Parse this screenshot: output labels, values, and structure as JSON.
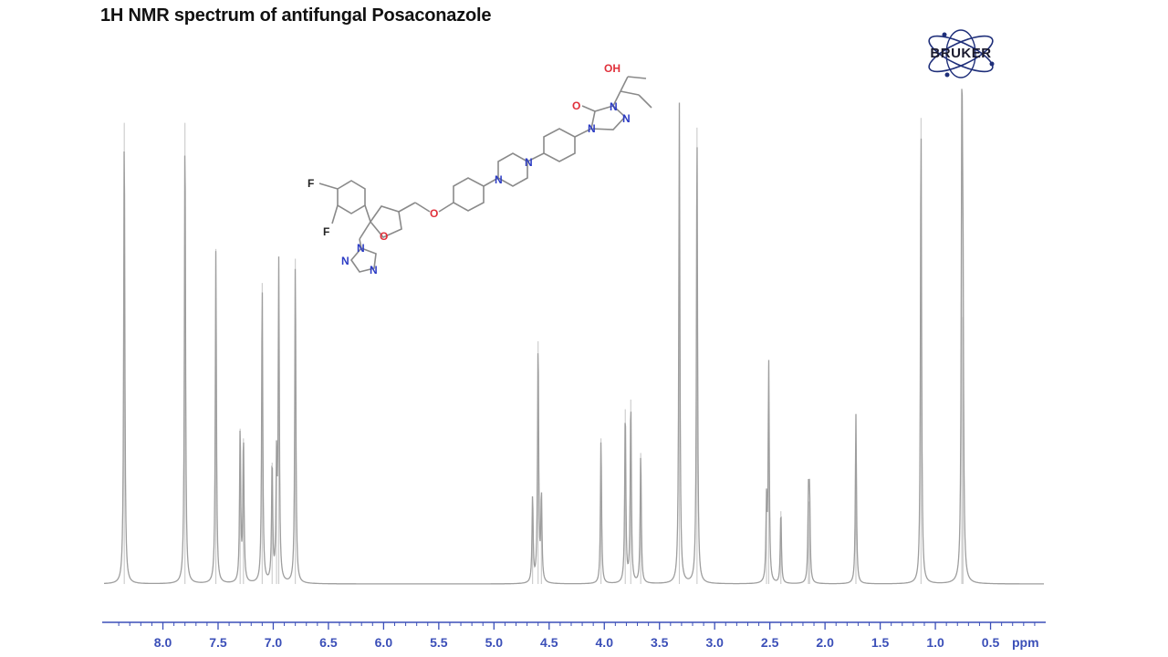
{
  "title": "1H NMR spectrum of antifungal Posaconazole",
  "logo": {
    "text": "BRUKER",
    "icon": "atom-orbit-icon"
  },
  "molecule": {
    "atom_labels": [
      "OH",
      "O",
      "N",
      "N",
      "N",
      "N",
      "N",
      "O",
      "O",
      "F",
      "F",
      "N",
      "N",
      "N"
    ]
  },
  "chart_data": {
    "type": "line",
    "title": "1H NMR spectrum of antifungal Posaconazole",
    "xlabel": "ppm",
    "xlim": [
      8.55,
      0.0
    ],
    "x_reversed": true,
    "ylim": [
      0,
      1.0
    ],
    "grid": false,
    "x_ticks": [
      8.0,
      7.5,
      7.0,
      6.5,
      6.0,
      5.5,
      5.0,
      4.5,
      4.0,
      3.5,
      3.0,
      2.5,
      2.0,
      1.5,
      1.0,
      0.5
    ],
    "x_tick_labels": [
      "8.0",
      "7.5",
      "7.0",
      "6.5",
      "6.0",
      "5.5",
      "5.0",
      "4.5",
      "4.0",
      "3.5",
      "3.0",
      "2.5",
      "2.0",
      "1.5",
      "1.0",
      "0.5"
    ],
    "series": [
      {
        "peaks": [
          {
            "ppm": 8.35,
            "intensity": 0.95
          },
          {
            "ppm": 7.8,
            "intensity": 0.95
          },
          {
            "ppm": 7.52,
            "intensity": 0.69
          },
          {
            "ppm": 7.3,
            "intensity": 0.32
          },
          {
            "ppm": 7.27,
            "intensity": 0.3
          },
          {
            "ppm": 7.1,
            "intensity": 0.62
          },
          {
            "ppm": 7.01,
            "intensity": 0.25
          },
          {
            "ppm": 6.97,
            "intensity": 0.24
          },
          {
            "ppm": 6.95,
            "intensity": 0.65
          },
          {
            "ppm": 6.8,
            "intensity": 0.67
          },
          {
            "ppm": 4.65,
            "intensity": 0.18
          },
          {
            "ppm": 4.6,
            "intensity": 0.5
          },
          {
            "ppm": 4.57,
            "intensity": 0.18
          },
          {
            "ppm": 4.03,
            "intensity": 0.3
          },
          {
            "ppm": 3.81,
            "intensity": 0.36
          },
          {
            "ppm": 3.76,
            "intensity": 0.38
          },
          {
            "ppm": 3.67,
            "intensity": 0.27
          },
          {
            "ppm": 3.32,
            "intensity": 0.99
          },
          {
            "ppm": 3.16,
            "intensity": 0.94
          },
          {
            "ppm": 2.53,
            "intensity": 0.16
          },
          {
            "ppm": 2.51,
            "intensity": 0.45
          },
          {
            "ppm": 2.4,
            "intensity": 0.15
          },
          {
            "ppm": 2.15,
            "intensity": 0.17
          },
          {
            "ppm": 2.14,
            "intensity": 0.17
          },
          {
            "ppm": 1.72,
            "intensity": 0.35
          },
          {
            "ppm": 1.13,
            "intensity": 0.96
          },
          {
            "ppm": 0.76,
            "intensity": 1.0
          },
          {
            "ppm": 0.75,
            "intensity": 0.55
          }
        ]
      }
    ]
  },
  "colors": {
    "spectrum": "#9e9e9e",
    "axis": "#3b4fb8",
    "bond": "#8a8a8a",
    "nitrogen": "#2b3bc4",
    "oxygen": "#e0303a",
    "fluorine": "#222222"
  }
}
